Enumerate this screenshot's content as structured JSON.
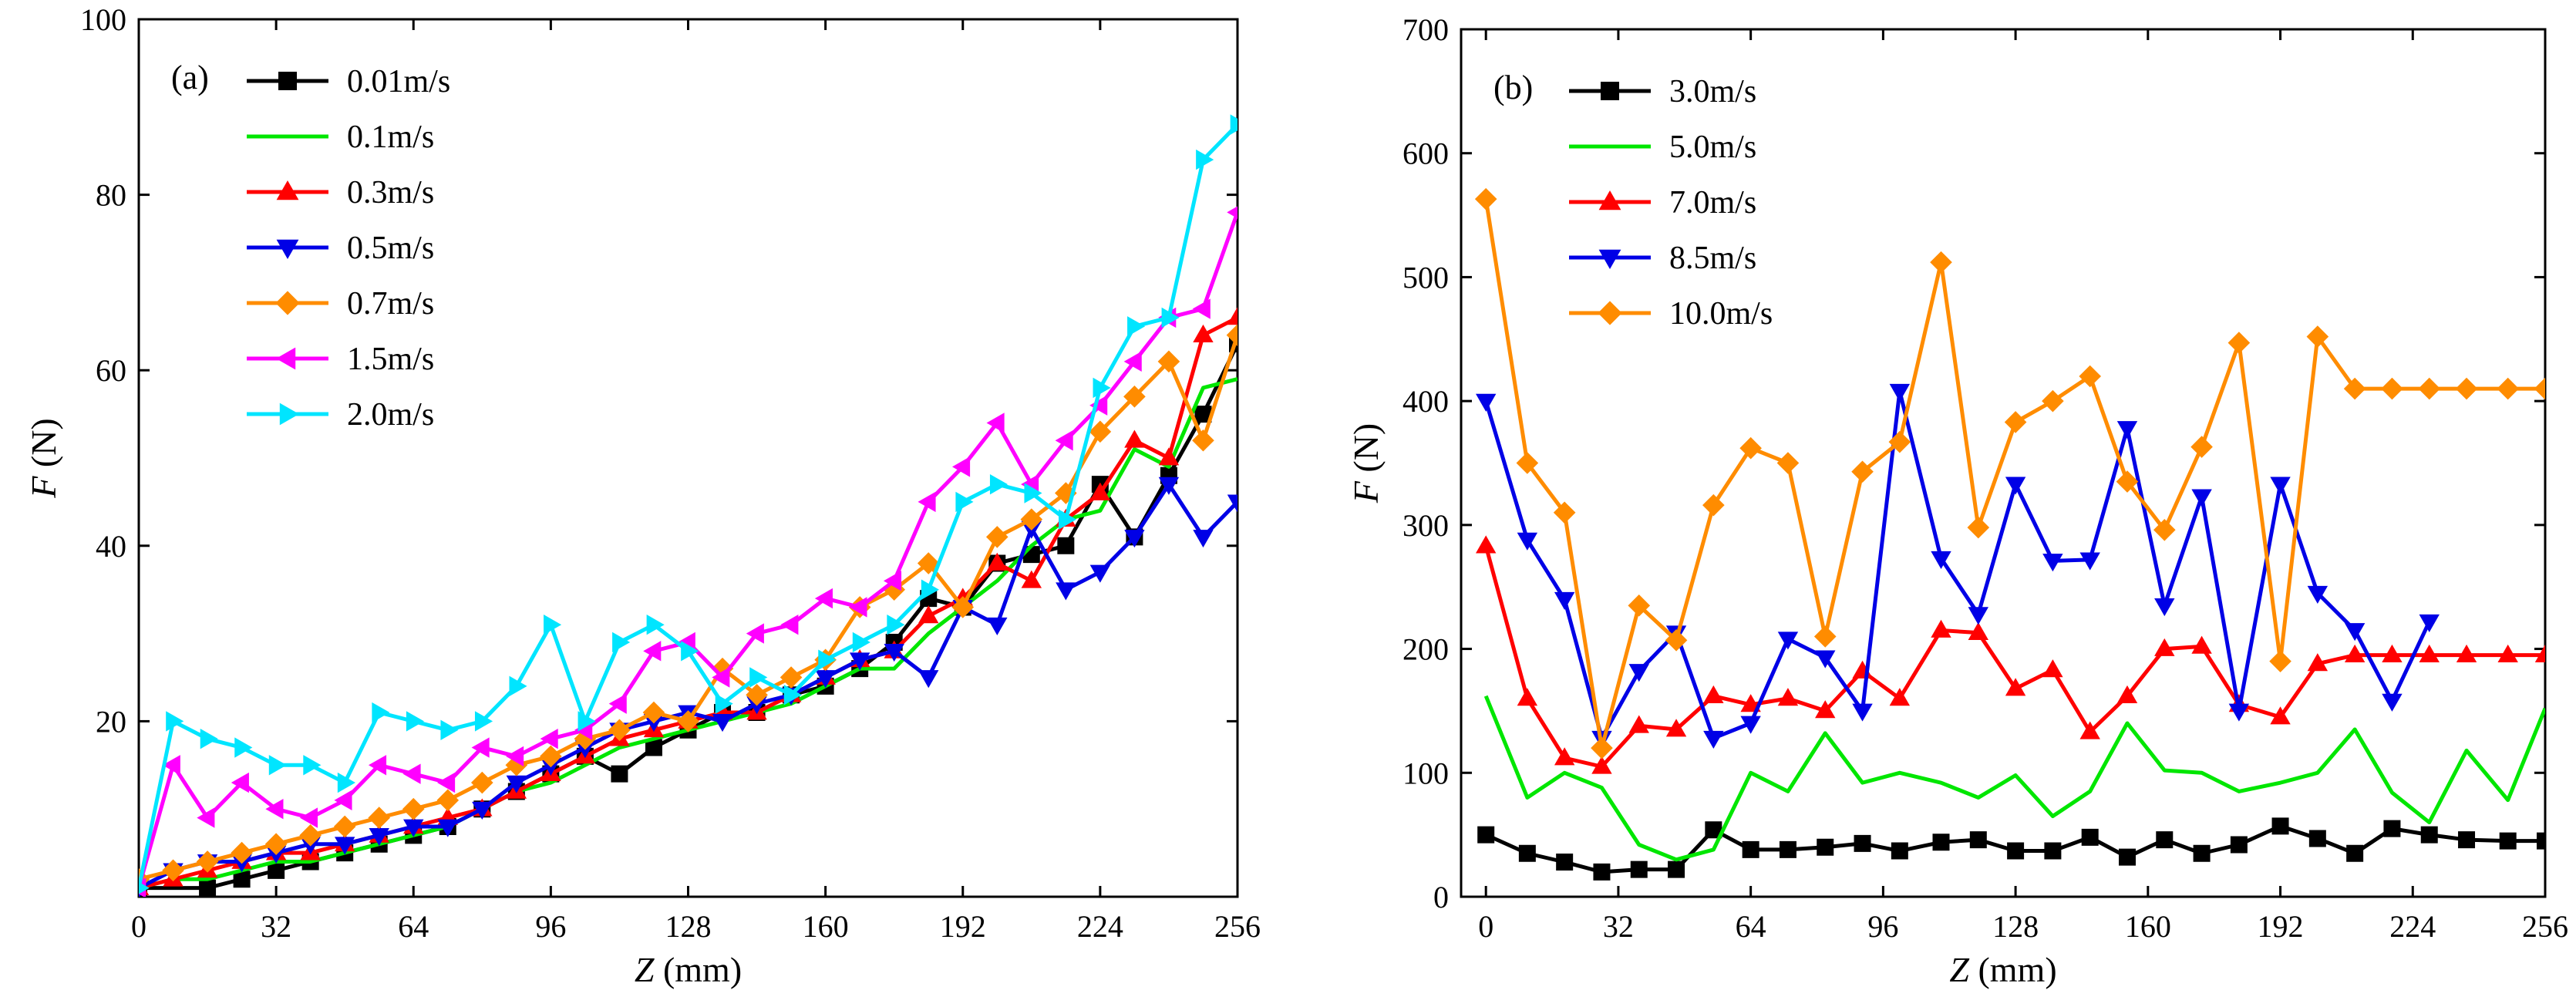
{
  "colors": {
    "black": "#000000",
    "green": "#00e600",
    "red": "#ff0000",
    "blue": "#0000e6",
    "orange": "#ff8c00",
    "magenta": "#ff00ff",
    "cyan": "#00e5ff"
  },
  "chart_data": [
    {
      "type": "line",
      "panel_label": "(a)",
      "xlabel_var": "Z",
      "xlabel_unit": " (mm)",
      "ylabel_var": "F",
      "ylabel_unit": " (N)",
      "xlim": [
        0,
        256
      ],
      "ylim": [
        0,
        100
      ],
      "xticks": [
        0,
        32,
        64,
        96,
        128,
        160,
        192,
        224,
        256
      ],
      "yticks": [
        20,
        40,
        60,
        80,
        100
      ],
      "grid": false,
      "legend_position": "top-left",
      "series": [
        {
          "name": "0.01m/s",
          "color": "#000000",
          "marker": "square",
          "x": [
            0,
            16,
            24,
            32,
            40,
            48,
            56,
            64,
            72,
            80,
            88,
            96,
            104,
            112,
            120,
            128,
            136,
            144,
            152,
            160,
            168,
            176,
            184,
            192,
            200,
            208,
            216,
            224,
            232,
            240,
            248,
            256
          ],
          "y": [
            1,
            1,
            2,
            3,
            4,
            5,
            6,
            7,
            8,
            10,
            12,
            14,
            16,
            14,
            17,
            19,
            21,
            21,
            23,
            24,
            26,
            29,
            34,
            33,
            38,
            39,
            40,
            47,
            41,
            48,
            55,
            63
          ]
        },
        {
          "name": "0.1m/s",
          "color": "#00e600",
          "marker": "circle",
          "x": [
            0,
            8,
            16,
            24,
            32,
            40,
            48,
            56,
            64,
            72,
            80,
            88,
            96,
            104,
            112,
            120,
            128,
            136,
            144,
            152,
            160,
            168,
            176,
            184,
            192,
            200,
            208,
            216,
            224,
            232,
            240,
            248,
            256
          ],
          "y": [
            1,
            2,
            2,
            3,
            4,
            4,
            5,
            6,
            7,
            8,
            10,
            12,
            13,
            15,
            17,
            18,
            19,
            20,
            21,
            22,
            24,
            26,
            26,
            30,
            33,
            36,
            40,
            43,
            44,
            51,
            49,
            58,
            59
          ]
        },
        {
          "name": "0.3m/s",
          "color": "#ff0000",
          "marker": "triangle-up",
          "x": [
            0,
            8,
            16,
            24,
            32,
            40,
            48,
            56,
            64,
            72,
            80,
            88,
            96,
            104,
            112,
            120,
            128,
            136,
            144,
            152,
            160,
            168,
            176,
            184,
            192,
            200,
            208,
            216,
            224,
            232,
            240,
            248,
            256
          ],
          "y": [
            1,
            2,
            3,
            4,
            5,
            5,
            6,
            7,
            8,
            9,
            10,
            12,
            14,
            16,
            18,
            19,
            20,
            21,
            21,
            23,
            25,
            27,
            28,
            32,
            34,
            38,
            36,
            43,
            46,
            52,
            50,
            64,
            66
          ]
        },
        {
          "name": "0.5m/s",
          "color": "#0000e6",
          "marker": "triangle-down",
          "x": [
            0,
            8,
            16,
            24,
            32,
            40,
            48,
            56,
            64,
            72,
            80,
            88,
            96,
            104,
            112,
            120,
            128,
            136,
            144,
            152,
            160,
            168,
            176,
            184,
            192,
            200,
            208,
            216,
            224,
            232,
            240,
            248,
            256
          ],
          "y": [
            1,
            3,
            4,
            4,
            5,
            6,
            6,
            7,
            8,
            8,
            10,
            13,
            15,
            17,
            19,
            20,
            21,
            20,
            22,
            23,
            25,
            27,
            28,
            25,
            33,
            31,
            42,
            35,
            37,
            41,
            47,
            41,
            45
          ]
        },
        {
          "name": "0.7m/s",
          "color": "#ff8c00",
          "marker": "diamond",
          "x": [
            0,
            8,
            16,
            24,
            32,
            40,
            48,
            56,
            64,
            72,
            80,
            88,
            96,
            104,
            112,
            120,
            128,
            136,
            144,
            152,
            160,
            168,
            176,
            184,
            192,
            200,
            208,
            216,
            224,
            232,
            240,
            248,
            256
          ],
          "y": [
            2,
            3,
            4,
            5,
            6,
            7,
            8,
            9,
            10,
            11,
            13,
            15,
            16,
            18,
            19,
            21,
            20,
            26,
            23,
            25,
            27,
            33,
            35,
            38,
            33,
            41,
            43,
            46,
            53,
            57,
            61,
            52,
            64
          ]
        },
        {
          "name": "1.5m/s",
          "color": "#ff00ff",
          "marker": "triangle-left",
          "x": [
            0,
            8,
            16,
            24,
            32,
            40,
            48,
            56,
            64,
            72,
            80,
            88,
            96,
            104,
            112,
            120,
            128,
            136,
            144,
            152,
            160,
            168,
            176,
            184,
            192,
            200,
            208,
            216,
            224,
            232,
            240,
            248,
            256
          ],
          "y": [
            1,
            15,
            9,
            13,
            10,
            9,
            11,
            15,
            14,
            13,
            17,
            16,
            18,
            19,
            22,
            28,
            29,
            25,
            30,
            31,
            34,
            33,
            36,
            45,
            49,
            54,
            47,
            52,
            56,
            61,
            66,
            67,
            78
          ]
        },
        {
          "name": "2.0m/s",
          "color": "#00e5ff",
          "marker": "triangle-right",
          "x": [
            0,
            8,
            16,
            24,
            32,
            40,
            48,
            56,
            64,
            72,
            80,
            88,
            96,
            104,
            112,
            120,
            128,
            136,
            144,
            152,
            160,
            168,
            176,
            184,
            192,
            200,
            208,
            216,
            224,
            232,
            240,
            248,
            256
          ],
          "y": [
            1,
            20,
            18,
            17,
            15,
            15,
            13,
            21,
            20,
            19,
            20,
            24,
            31,
            20,
            29,
            31,
            28,
            22,
            25,
            23,
            27,
            29,
            31,
            35,
            45,
            47,
            46,
            43,
            58,
            65,
            66,
            84,
            88
          ]
        }
      ]
    },
    {
      "type": "line",
      "panel_label": "(b)",
      "xlabel_var": "Z",
      "xlabel_unit": " (mm)",
      "ylabel_var": "F",
      "ylabel_unit": " (N)",
      "xlim": [
        -6,
        256
      ],
      "ylim": [
        0,
        700
      ],
      "xticks": [
        0,
        32,
        64,
        96,
        128,
        160,
        192,
        224,
        256
      ],
      "yticks": [
        0,
        100,
        200,
        300,
        400,
        500,
        600,
        700
      ],
      "grid": false,
      "legend_position": "top-left",
      "series": [
        {
          "name": "3.0m/s",
          "color": "#000000",
          "marker": "square",
          "x": [
            0,
            10,
            19,
            28,
            37,
            46,
            55,
            64,
            73,
            82,
            91,
            100,
            110,
            119,
            128,
            137,
            146,
            155,
            164,
            173,
            182,
            192,
            201,
            210,
            219,
            228,
            237,
            247,
            256
          ],
          "y": [
            50,
            35,
            28,
            20,
            22,
            22,
            54,
            38,
            38,
            40,
            43,
            37,
            44,
            46,
            37,
            37,
            48,
            32,
            46,
            35,
            42,
            57,
            47,
            35,
            55,
            50,
            46,
            45,
            45
          ]
        },
        {
          "name": "5.0m/s",
          "color": "#00e600",
          "marker": "circle",
          "x": [
            0,
            10,
            19,
            28,
            37,
            46,
            55,
            64,
            73,
            82,
            91,
            100,
            110,
            119,
            128,
            137,
            146,
            155,
            164,
            173,
            182,
            192,
            201,
            210,
            219,
            228,
            237,
            247,
            256
          ],
          "y": [
            162,
            80,
            100,
            88,
            42,
            30,
            38,
            100,
            85,
            132,
            92,
            100,
            92,
            80,
            98,
            65,
            85,
            140,
            102,
            100,
            85,
            92,
            100,
            135,
            84,
            60,
            118,
            78,
            152
          ]
        },
        {
          "name": "7.0m/s",
          "color": "#ff0000",
          "marker": "triangle-up",
          "x": [
            0,
            10,
            19,
            28,
            37,
            46,
            55,
            64,
            73,
            82,
            91,
            100,
            110,
            119,
            128,
            137,
            146,
            155,
            164,
            173,
            182,
            192,
            201,
            210,
            219,
            228,
            237,
            247,
            256
          ],
          "y": [
            283,
            160,
            112,
            105,
            138,
            135,
            162,
            155,
            160,
            150,
            182,
            160,
            215,
            213,
            168,
            183,
            133,
            162,
            200,
            202,
            155,
            145,
            188,
            195,
            195,
            195,
            195,
            195,
            195
          ]
        },
        {
          "name": "8.5m/s",
          "color": "#0000e6",
          "marker": "triangle-down",
          "x": [
            0,
            10,
            19,
            28,
            37,
            46,
            55,
            64,
            73,
            82,
            91,
            100,
            110,
            119,
            128,
            137,
            146,
            155,
            164,
            173,
            182,
            192,
            201,
            210,
            219,
            228
          ],
          "y": [
            400,
            288,
            240,
            128,
            182,
            213,
            128,
            140,
            208,
            193,
            150,
            408,
            273,
            228,
            333,
            271,
            272,
            378,
            235,
            323,
            150,
            333,
            245,
            215,
            158,
            222
          ]
        },
        {
          "name": "10.0m/s",
          "color": "#ff8c00",
          "marker": "diamond",
          "x": [
            0,
            10,
            19,
            28,
            37,
            46,
            55,
            64,
            73,
            82,
            91,
            100,
            110,
            119,
            128,
            137,
            146,
            155,
            164,
            173,
            182,
            192,
            201,
            210,
            219,
            228,
            237,
            247,
            256
          ],
          "y": [
            563,
            350,
            310,
            120,
            235,
            207,
            316,
            362,
            350,
            210,
            343,
            367,
            512,
            298,
            383,
            400,
            420,
            335,
            296,
            363,
            447,
            190,
            452,
            410,
            410,
            410,
            410,
            410,
            410
          ]
        }
      ]
    }
  ]
}
